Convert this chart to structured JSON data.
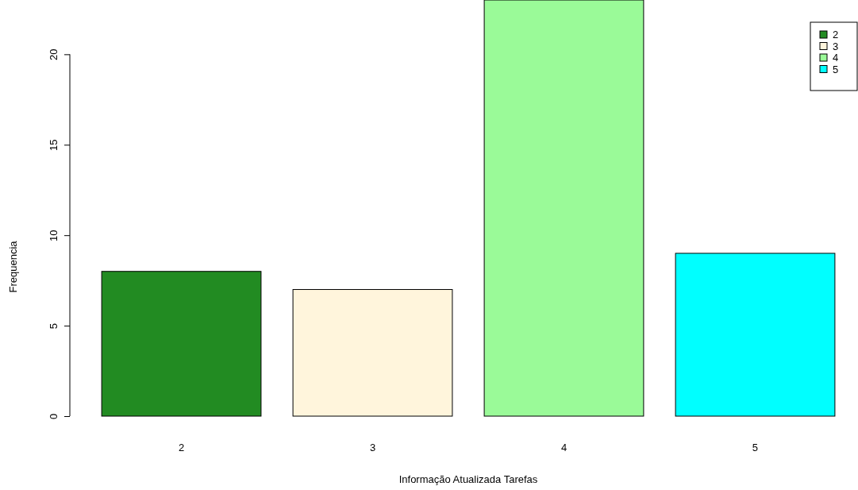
{
  "chart_data": {
    "type": "bar",
    "xlabel": "Informação Atualizada Tarefas",
    "ylabel": "Frequencia",
    "categories": [
      "2",
      "3",
      "4",
      "5"
    ],
    "series": [
      {
        "name": "2",
        "color": "#228b22",
        "values": [
          8,
          null,
          null,
          null
        ]
      },
      {
        "name": "3",
        "color": "#fff5dc",
        "values": [
          null,
          7,
          null,
          null
        ]
      },
      {
        "name": "4",
        "color": "#9afa98",
        "values": [
          null,
          null,
          23,
          null
        ]
      },
      {
        "name": "5",
        "color": "#00ffff",
        "values": [
          null,
          null,
          null,
          9
        ]
      }
    ],
    "stacked": true,
    "ylim": [
      0,
      23
    ],
    "yticks": [
      0,
      5,
      10,
      15,
      20
    ],
    "legend": "top right"
  }
}
